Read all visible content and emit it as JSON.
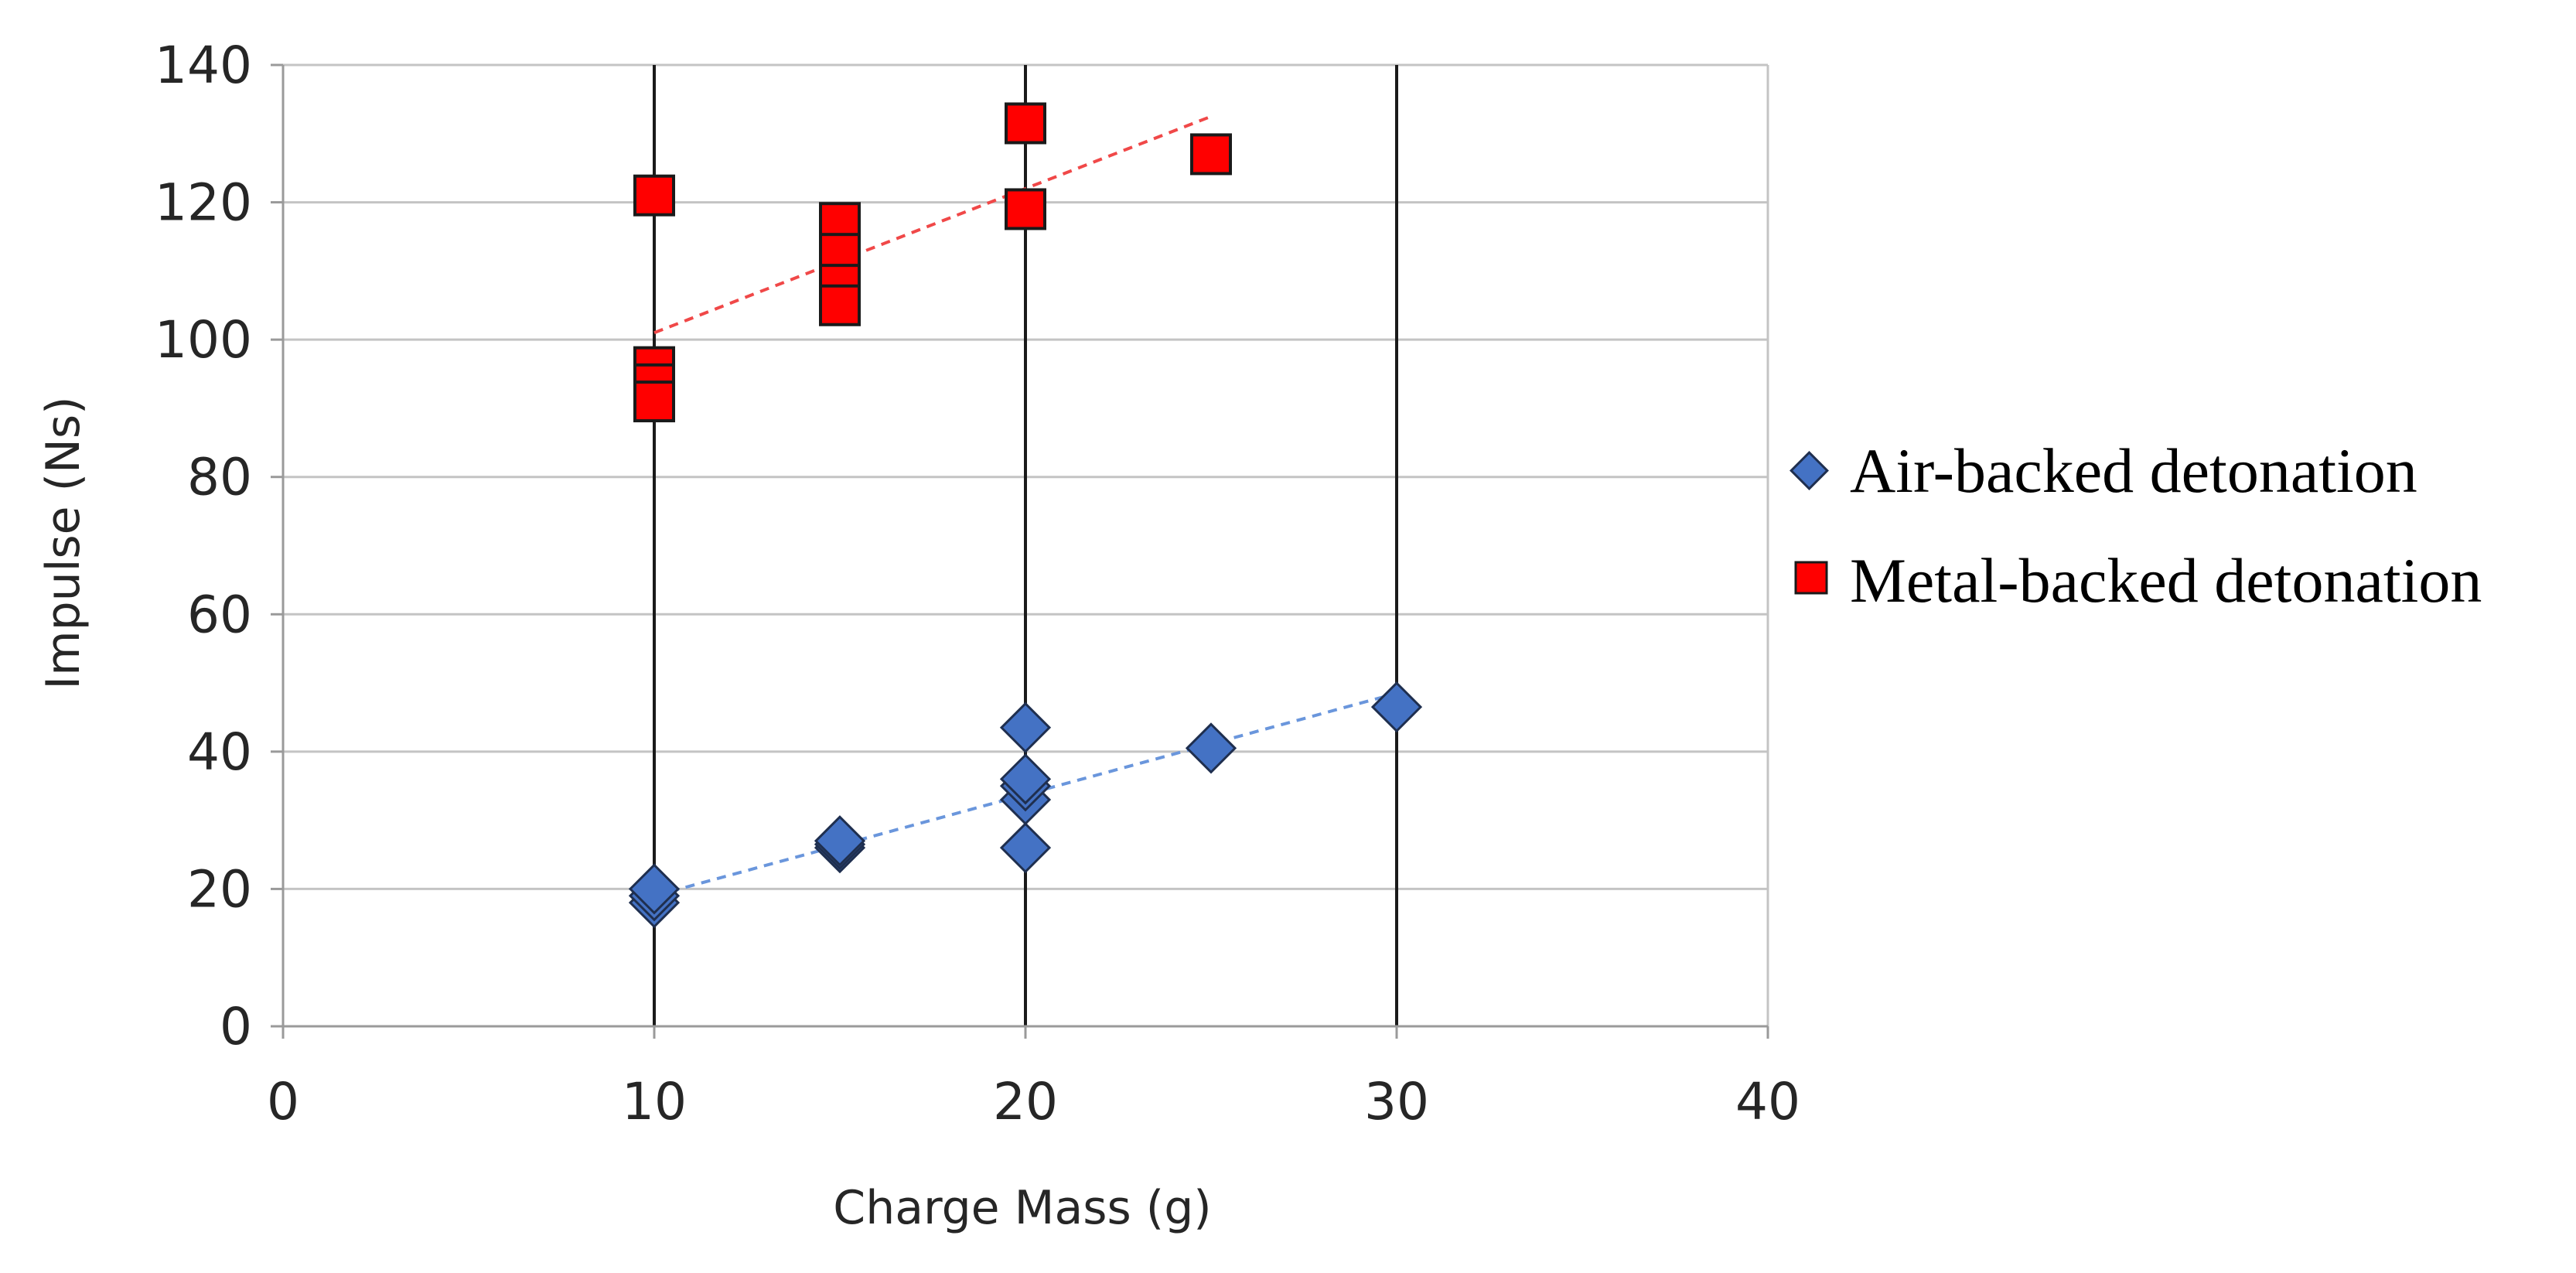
{
  "chart_data": {
    "type": "scatter",
    "title": "",
    "xlabel": "Charge Mass (g)",
    "ylabel": "Impulse (Ns)",
    "xlim": [
      0,
      40
    ],
    "ylim": [
      0,
      140
    ],
    "x_ticks": [
      0,
      10,
      20,
      30,
      40
    ],
    "y_ticks": [
      0,
      20,
      40,
      60,
      80,
      100,
      120,
      140
    ],
    "x_tick_labels": [
      "0",
      "10",
      "20",
      "30",
      "40"
    ],
    "y_tick_labels": [
      "0",
      "20",
      "40",
      "60",
      "80",
      "100",
      "120",
      "140"
    ],
    "horizontal_grid": true,
    "vertical_lines_at": [
      10,
      20,
      30
    ],
    "legend_position": "right",
    "series": [
      {
        "name": "Air-backed detonation",
        "marker": "diamond",
        "color": "#4472C4",
        "points": [
          {
            "x": 10,
            "y": 18
          },
          {
            "x": 10,
            "y": 19
          },
          {
            "x": 10,
            "y": 20
          },
          {
            "x": 15,
            "y": 26
          },
          {
            "x": 15,
            "y": 26.5
          },
          {
            "x": 15,
            "y": 27
          },
          {
            "x": 20,
            "y": 26
          },
          {
            "x": 20,
            "y": 33
          },
          {
            "x": 20,
            "y": 35
          },
          {
            "x": 20,
            "y": 36
          },
          {
            "x": 20,
            "y": 43.5
          },
          {
            "x": 25,
            "y": 40.5
          },
          {
            "x": 30,
            "y": 46.5
          }
        ],
        "trendline": {
          "x": [
            10,
            30
          ],
          "y": [
            19,
            48.5
          ],
          "color": "#6A96DC"
        }
      },
      {
        "name": "Metal-backed detonation",
        "marker": "square",
        "color": "#FF0000",
        "points": [
          {
            "x": 10,
            "y": 121
          },
          {
            "x": 10,
            "y": 96
          },
          {
            "x": 10,
            "y": 93.5
          },
          {
            "x": 10,
            "y": 91
          },
          {
            "x": 15,
            "y": 117
          },
          {
            "x": 15,
            "y": 112.5
          },
          {
            "x": 15,
            "y": 108
          },
          {
            "x": 15,
            "y": 105
          },
          {
            "x": 20,
            "y": 131.5
          },
          {
            "x": 20,
            "y": 119
          },
          {
            "x": 25,
            "y": 127
          }
        ],
        "trendline": {
          "x": [
            10,
            25
          ],
          "y": [
            101,
            132.5
          ],
          "color": "#F04848"
        }
      }
    ]
  }
}
